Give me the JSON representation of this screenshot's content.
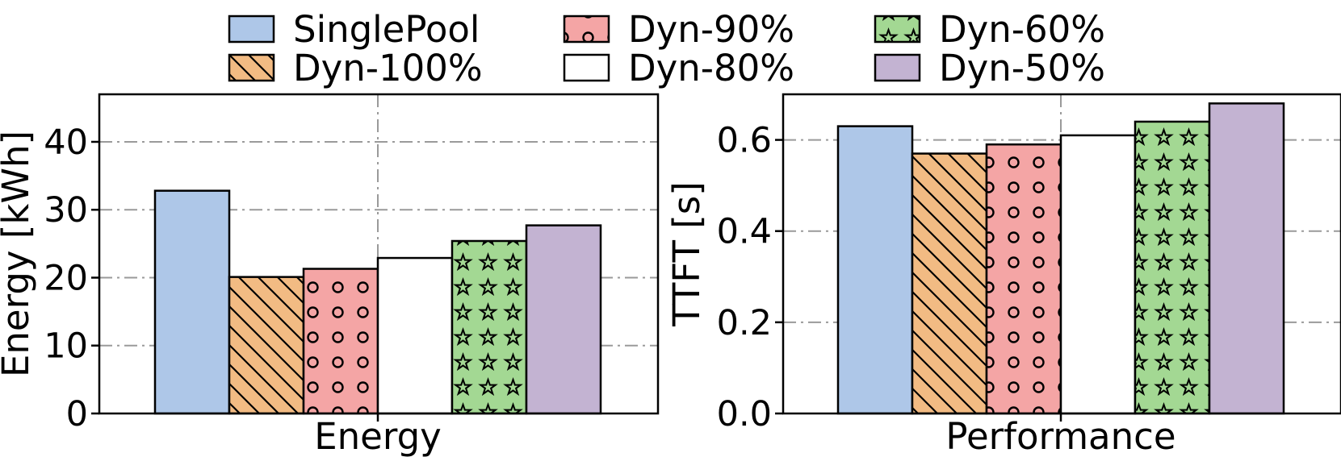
{
  "legend": {
    "entries": [
      "SinglePool",
      "Dyn-90%",
      "Dyn-60%",
      "Dyn-100%",
      "Dyn-80%",
      "Dyn-50%"
    ]
  },
  "series_styles": {
    "SinglePool": {
      "fill": "#aec7e8",
      "pattern": "none"
    },
    "Dyn-100%": {
      "fill": "#f2bb83",
      "pattern": "hatch"
    },
    "Dyn-90%": {
      "fill": "#f4a5a5",
      "pattern": "circles"
    },
    "Dyn-80%": {
      "fill": "#ffffff",
      "pattern": "none"
    },
    "Dyn-60%": {
      "fill": "#a3d893",
      "pattern": "stars"
    },
    "Dyn-50%": {
      "fill": "#c3b3d2",
      "pattern": "none"
    }
  },
  "chart_data": [
    {
      "type": "bar",
      "categories": [
        "Energy"
      ],
      "xlabel": "Energy",
      "ylabel": "Energy [kWh]",
      "ylim": [
        0,
        47
      ],
      "yticks": [
        0,
        10,
        20,
        30,
        40
      ],
      "grid": true,
      "series": [
        {
          "name": "SinglePool",
          "values": [
            32.8
          ]
        },
        {
          "name": "Dyn-100%",
          "values": [
            20.1
          ]
        },
        {
          "name": "Dyn-90%",
          "values": [
            21.3
          ]
        },
        {
          "name": "Dyn-80%",
          "values": [
            22.9
          ]
        },
        {
          "name": "Dyn-60%",
          "values": [
            25.4
          ]
        },
        {
          "name": "Dyn-50%",
          "values": [
            27.7
          ]
        }
      ]
    },
    {
      "type": "bar",
      "categories": [
        "Performance"
      ],
      "xlabel": "Performance",
      "ylabel": "TTFT [s]",
      "ylim": [
        0,
        0.7
      ],
      "yticks": [
        0.0,
        0.2,
        0.4,
        0.6
      ],
      "grid": true,
      "series": [
        {
          "name": "SinglePool",
          "values": [
            0.63
          ]
        },
        {
          "name": "Dyn-100%",
          "values": [
            0.57
          ]
        },
        {
          "name": "Dyn-90%",
          "values": [
            0.59
          ]
        },
        {
          "name": "Dyn-80%",
          "values": [
            0.61
          ]
        },
        {
          "name": "Dyn-60%",
          "values": [
            0.64
          ]
        },
        {
          "name": "Dyn-50%",
          "values": [
            0.68
          ]
        }
      ]
    }
  ]
}
